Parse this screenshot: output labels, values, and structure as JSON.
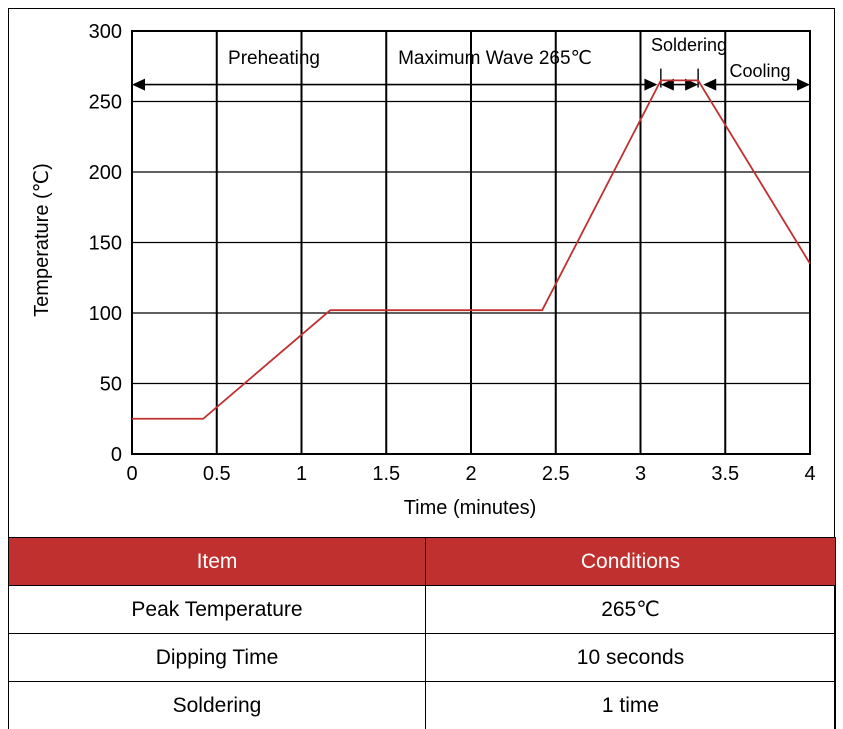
{
  "chart_data": {
    "type": "line",
    "xlabel": "Time (minutes)",
    "ylabel": "Temperature (℃)",
    "xlim": [
      0,
      4
    ],
    "ylim": [
      0,
      300
    ],
    "xticks": [
      0,
      0.5,
      1,
      1.5,
      2,
      2.5,
      3,
      3.5,
      4
    ],
    "xtick_labels": [
      "0",
      "0.5",
      "1",
      "1.5",
      "2",
      "2.5",
      "3",
      "3.5",
      "4"
    ],
    "yticks": [
      0,
      50,
      100,
      150,
      200,
      250,
      300
    ],
    "ytick_labels": [
      "0",
      "50",
      "100",
      "150",
      "200",
      "250",
      "300"
    ],
    "grid": true,
    "line_color": "#c0302f",
    "series": [
      {
        "x": [
          0,
          0.42,
          1.17,
          2.42,
          3.12,
          3.34,
          4.0
        ],
        "y": [
          25,
          25,
          102,
          102,
          265,
          265,
          135
        ]
      }
    ],
    "annotations": {
      "preheating": "Preheating",
      "maximum_wave": "Maximum Wave 265℃",
      "soldering": "Soldering",
      "cooling": "Cooling"
    },
    "phase_arrows": [
      {
        "name": "preheating-arrow",
        "x_start": 0,
        "x_end": 3.1
      },
      {
        "name": "soldering-arrow",
        "x_start": 3.12,
        "x_end": 3.34
      },
      {
        "name": "cooling-arrow",
        "x_start": 3.37,
        "x_end": 4.0
      }
    ],
    "arrow_level": 262
  },
  "table": {
    "headers": [
      "Item",
      "Conditions"
    ],
    "rows": [
      [
        "Peak Temperature",
        "265℃"
      ],
      [
        "Dipping Time",
        "10 seconds"
      ],
      [
        "Soldering",
        "1 time"
      ]
    ],
    "header_color": "#c0302f"
  }
}
